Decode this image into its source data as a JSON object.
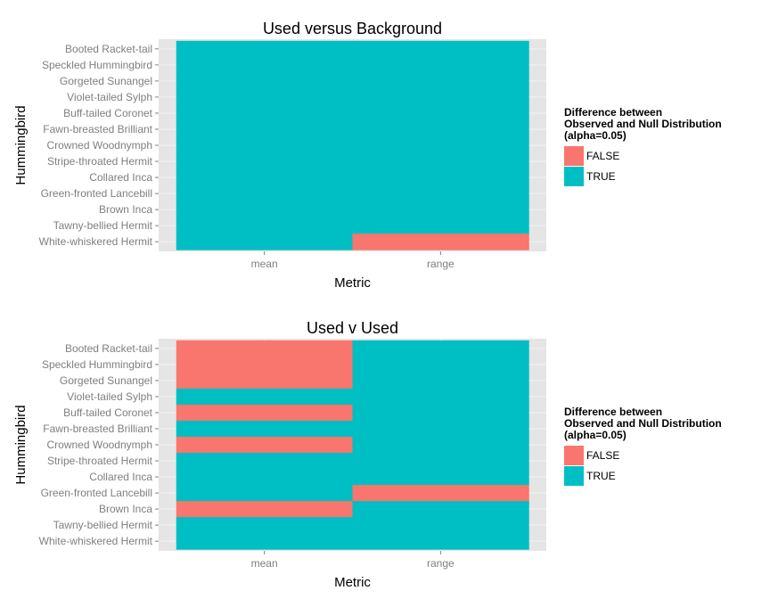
{
  "chart_data": [
    {
      "type": "heatmap",
      "title": "Used versus Background",
      "xlabel": "Metric",
      "ylabel": "Hummingbird",
      "x_categories": [
        "mean",
        "range"
      ],
      "y_categories": [
        "Booted Racket-tail",
        "Speckled Hummingbird",
        "Gorgeted Sunangel",
        "Violet-tailed Sylph",
        "Buff-tailed Coronet",
        "Fawn-breasted Brilliant",
        "Crowned Woodnymph",
        "Stripe-throated Hermit",
        "Collared Inca",
        "Green-fronted Lancebill",
        "Brown Inca",
        "Tawny-bellied Hermit",
        "White-whiskered Hermit"
      ],
      "values": {
        "mean": [
          true,
          true,
          true,
          true,
          true,
          true,
          true,
          true,
          true,
          true,
          true,
          true,
          true
        ],
        "range": [
          true,
          true,
          true,
          true,
          true,
          true,
          true,
          true,
          true,
          true,
          true,
          true,
          false
        ]
      },
      "legend": {
        "title_lines": [
          "Difference between",
          "Observed and Null Distribution",
          "(alpha=0.05)"
        ],
        "entries": [
          {
            "label": "FALSE",
            "color": "#F8766D"
          },
          {
            "label": "TRUE",
            "color": "#00BFC4"
          }
        ],
        "placement": "right"
      },
      "grid": true
    },
    {
      "type": "heatmap",
      "title": "Used v Used",
      "xlabel": "Metric",
      "ylabel": "Hummingbird",
      "x_categories": [
        "mean",
        "range"
      ],
      "y_categories": [
        "Booted Racket-tail",
        "Speckled Hummingbird",
        "Gorgeted Sunangel",
        "Violet-tailed Sylph",
        "Buff-tailed Coronet",
        "Fawn-breasted Brilliant",
        "Crowned Woodnymph",
        "Stripe-throated Hermit",
        "Collared Inca",
        "Green-fronted Lancebill",
        "Brown Inca",
        "Tawny-bellied Hermit",
        "White-whiskered Hermit"
      ],
      "values": {
        "mean": [
          false,
          false,
          false,
          true,
          false,
          true,
          false,
          true,
          true,
          true,
          false,
          true,
          true
        ],
        "range": [
          true,
          true,
          true,
          true,
          true,
          true,
          true,
          true,
          true,
          false,
          true,
          true,
          true
        ]
      },
      "legend": {
        "title_lines": [
          "Difference between",
          "Observed and Null Distribution",
          "(alpha=0.05)"
        ],
        "entries": [
          {
            "label": "FALSE",
            "color": "#F8766D"
          },
          {
            "label": "TRUE",
            "color": "#00BFC4"
          }
        ],
        "placement": "right"
      },
      "grid": true
    }
  ],
  "colors": {
    "panel_background": "#E5E5E5",
    "grid": "#F2F2F2",
    "false": "#F8766D",
    "true": "#00BFC4"
  }
}
